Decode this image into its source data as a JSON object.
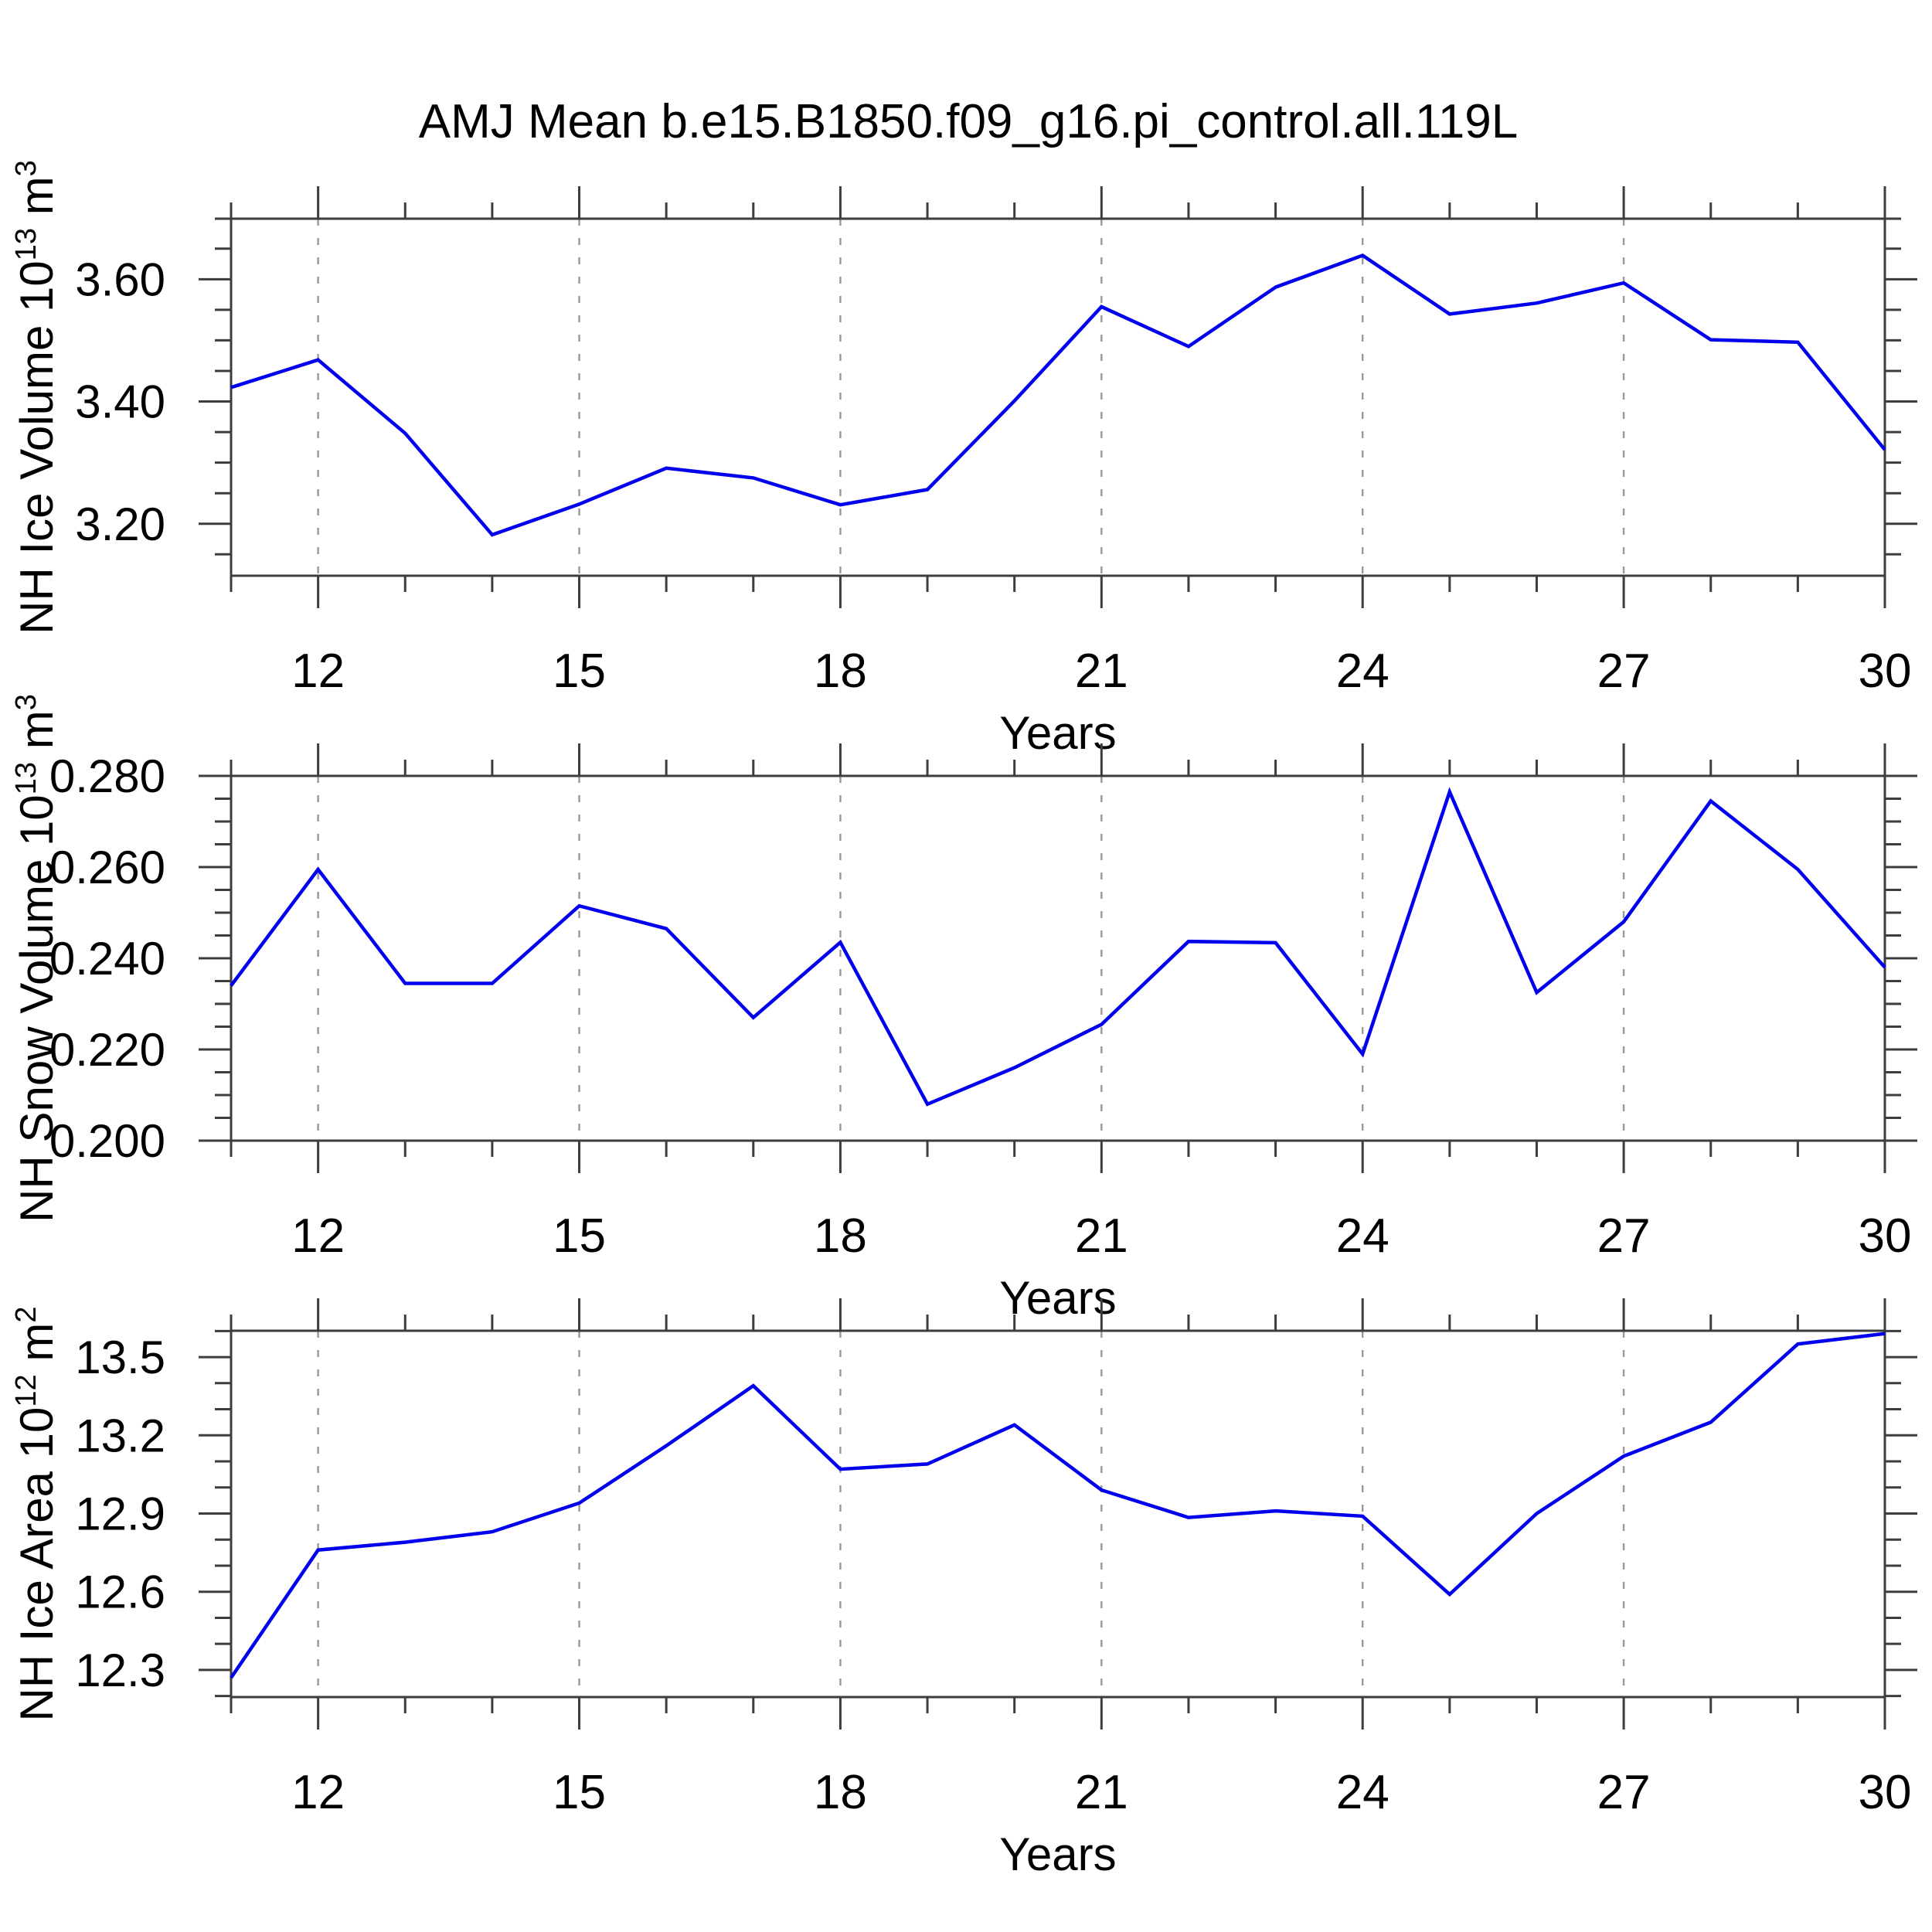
{
  "title": "AMJ Mean b.e15.B1850.f09_g16.pi_control.all.119L",
  "colors": {
    "line": "#0000ee",
    "frame": "#3d3d3d",
    "grid": "#999999",
    "text": "#000000",
    "background": "#ffffff"
  },
  "x_axis": {
    "label": "Years",
    "xlim": [
      11,
      30
    ],
    "major_ticks": [
      12,
      15,
      18,
      21,
      24,
      27,
      30
    ],
    "minor_step": 1,
    "gridline_years": [
      12,
      15,
      18,
      21,
      24,
      27
    ]
  },
  "chart_data": [
    {
      "type": "line",
      "name": "nh-ice-volume",
      "ylabel_text": "NH Ice Volume 10^13 m^3",
      "ylabel_parts": [
        {
          "t": "NH Ice Volume 10"
        },
        {
          "t": "13",
          "sup": true
        },
        {
          "t": " m"
        },
        {
          "t": "3",
          "sup": true
        }
      ],
      "xlabel": "Years",
      "xlim": [
        11,
        30
      ],
      "ylim": [
        3.115,
        3.699
      ],
      "grid": "x-dashed",
      "legend": "none",
      "yticks": [
        {
          "v": 3.2,
          "label": "3.20"
        },
        {
          "v": 3.4,
          "label": "3.40"
        },
        {
          "v": 3.6,
          "label": "3.60"
        }
      ],
      "y_minor_step": 0.05,
      "x": [
        11,
        12,
        13,
        14,
        15,
        16,
        17,
        18,
        19,
        20,
        21,
        22,
        23,
        24,
        25,
        26,
        27,
        28,
        29,
        30
      ],
      "values": [
        3.423,
        3.468,
        3.348,
        3.182,
        3.232,
        3.291,
        3.275,
        3.231,
        3.256,
        3.401,
        3.555,
        3.49,
        3.587,
        3.639,
        3.543,
        3.561,
        3.594,
        3.501,
        3.497,
        3.321
      ]
    },
    {
      "type": "line",
      "name": "nh-snow-volume",
      "ylabel_text": "NH Snow Volume 10^13 m^3",
      "ylabel_parts": [
        {
          "t": "NH Snow Volume 10"
        },
        {
          "t": "13",
          "sup": true
        },
        {
          "t": " m"
        },
        {
          "t": "3",
          "sup": true
        }
      ],
      "xlabel": "Years",
      "xlim": [
        11,
        30
      ],
      "ylim": [
        0.2,
        0.28
      ],
      "grid": "x-dashed",
      "legend": "none",
      "yticks": [
        {
          "v": 0.2,
          "label": "0.200"
        },
        {
          "v": 0.22,
          "label": "0.220"
        },
        {
          "v": 0.24,
          "label": "0.240"
        },
        {
          "v": 0.26,
          "label": "0.260"
        },
        {
          "v": 0.28,
          "label": "0.280"
        }
      ],
      "y_minor_step": 0.005,
      "x": [
        11,
        12,
        13,
        14,
        15,
        16,
        17,
        18,
        19,
        20,
        21,
        22,
        23,
        24,
        25,
        26,
        27,
        28,
        29,
        30
      ],
      "values": [
        0.234,
        0.2595,
        0.2345,
        0.2345,
        0.2515,
        0.2465,
        0.227,
        0.2435,
        0.208,
        0.216,
        0.2255,
        0.2437,
        0.2434,
        0.219,
        0.2765,
        0.2325,
        0.248,
        0.2745,
        0.2595,
        0.238
      ]
    },
    {
      "type": "line",
      "name": "nh-ice-area",
      "ylabel_text": "NH Ice Area 10^12 m^2",
      "ylabel_parts": [
        {
          "t": "NH Ice Area 10"
        },
        {
          "t": "12",
          "sup": true
        },
        {
          "t": " m"
        },
        {
          "t": "2",
          "sup": true
        }
      ],
      "xlabel": "Years",
      "xlim": [
        11,
        30
      ],
      "ylim": [
        12.196,
        13.601
      ],
      "grid": "x-dashed",
      "legend": "none",
      "yticks": [
        {
          "v": 12.3,
          "label": "12.3"
        },
        {
          "v": 12.6,
          "label": "12.6"
        },
        {
          "v": 12.9,
          "label": "12.9"
        },
        {
          "v": 13.2,
          "label": "13.2"
        },
        {
          "v": 13.5,
          "label": "13.5"
        }
      ],
      "y_minor_step": 0.1,
      "x": [
        11,
        12,
        13,
        14,
        15,
        16,
        17,
        18,
        19,
        20,
        21,
        22,
        23,
        24,
        25,
        26,
        27,
        28,
        29,
        30
      ],
      "values": [
        12.27,
        12.76,
        12.79,
        12.83,
        12.94,
        13.16,
        13.39,
        13.07,
        13.09,
        13.24,
        12.99,
        12.885,
        12.91,
        12.89,
        12.59,
        12.9,
        13.12,
        13.25,
        13.55,
        13.59
      ]
    }
  ]
}
